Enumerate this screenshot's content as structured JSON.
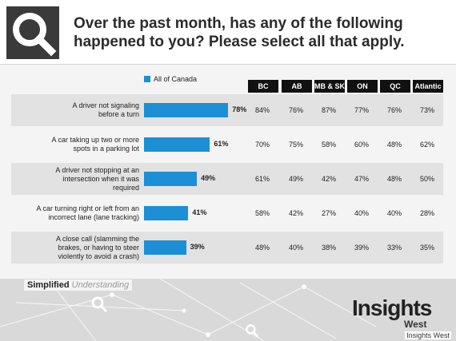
{
  "header": {
    "question": "Over the past month, has any of the following happened to you? Please select all that apply."
  },
  "chart_data": {
    "type": "bar",
    "legend": "All of Canada",
    "categories": [
      "A driver not signaling before a turn",
      "A car taking up two or more spots in a parking lot",
      "A driver not stopping at an intersection when it was required",
      "A car turning right or left from an incorrect lane (lane tracking)",
      "A close call (slamming the brakes, or having to steer violently to avoid a crash)"
    ],
    "category_lines": [
      [
        "A driver not signaling",
        "before a turn"
      ],
      [
        "A car taking up two or more",
        "spots in a parking lot"
      ],
      [
        "A driver not stopping at an",
        "intersection when it was",
        "required"
      ],
      [
        "A car turning right or left from an",
        "incorrect lane (lane tracking)"
      ],
      [
        "A close call (slamming the",
        "brakes, or having to steer",
        "violently to avoid a crash)"
      ]
    ],
    "values": [
      78,
      61,
      49,
      41,
      39
    ],
    "value_labels": [
      "78%",
      "61%",
      "49%",
      "41%",
      "39%"
    ],
    "xlim": [
      0,
      100
    ],
    "regions": [
      "BC",
      "AB",
      "MB & SK",
      "ON",
      "QC",
      "Atlantic"
    ],
    "region_values": [
      [
        "84%",
        "76%",
        "87%",
        "77%",
        "76%",
        "73%"
      ],
      [
        "70%",
        "75%",
        "58%",
        "60%",
        "48%",
        "62%"
      ],
      [
        "61%",
        "49%",
        "42%",
        "47%",
        "48%",
        "50%"
      ],
      [
        "58%",
        "42%",
        "27%",
        "40%",
        "40%",
        "28%"
      ],
      [
        "48%",
        "40%",
        "38%",
        "39%",
        "33%",
        "35%"
      ]
    ],
    "colors": {
      "bar": "#1c8fd6",
      "header": "#111111",
      "band": "#e2e2e2"
    }
  },
  "footer": {
    "tagline_bold": "Simplified",
    "tagline_light": "Understanding",
    "brand": "Insights",
    "brand_sub": "West",
    "credit": "Insights West"
  },
  "icons": {
    "logo": "magnifier-q-icon"
  }
}
